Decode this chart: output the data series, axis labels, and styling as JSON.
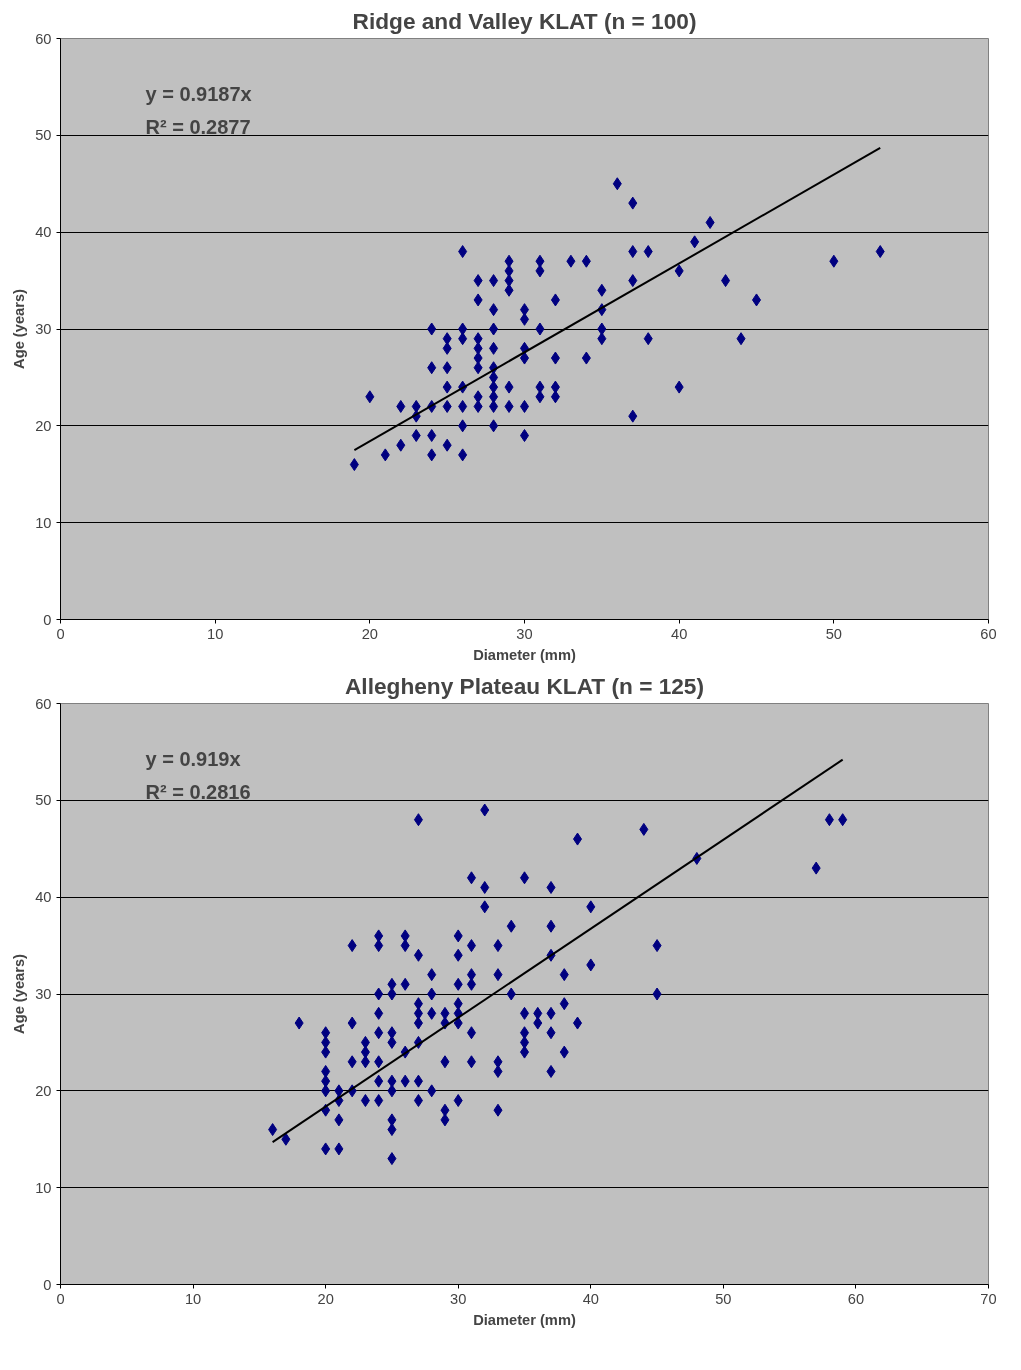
{
  "chart_data": [
    {
      "type": "scatter",
      "title": "Ridge and Valley KLAT (n = 100)",
      "xlabel": "Diameter (mm)",
      "ylabel": "Age (years)",
      "xlim": [
        0,
        60
      ],
      "ylim": [
        0,
        60
      ],
      "xticks": [
        0,
        10,
        20,
        30,
        40,
        50,
        60
      ],
      "yticks": [
        0,
        10,
        20,
        30,
        40,
        50,
        60
      ],
      "grid": "y",
      "annotations": [
        "y = 0.9187x",
        "R² = 0.2877"
      ],
      "series": [
        {
          "color": "#000080",
          "marker": "diamond",
          "x": [
            19,
            20,
            21,
            22,
            22,
            23,
            23,
            23,
            24,
            24,
            24,
            24,
            24,
            25,
            25,
            25,
            25,
            25,
            25,
            26,
            26,
            26,
            26,
            26,
            26,
            26,
            27,
            27,
            27,
            27,
            27,
            27,
            27,
            27,
            28,
            28,
            28,
            28,
            28,
            28,
            28,
            28,
            28,
            28,
            29,
            29,
            29,
            29,
            29,
            29,
            30,
            30,
            30,
            30,
            30,
            30,
            31,
            31,
            31,
            31,
            31,
            32,
            32,
            32,
            32,
            33,
            34,
            34,
            35,
            35,
            35,
            35,
            36,
            37,
            37,
            37,
            37,
            38,
            38,
            40,
            40,
            41,
            42,
            43,
            44,
            45,
            50,
            53
          ],
          "values": [
            16,
            23,
            17,
            22,
            18,
            22,
            21,
            19,
            30,
            26,
            22,
            19,
            17,
            29,
            28,
            26,
            24,
            22,
            18,
            38,
            30,
            29,
            24,
            22,
            20,
            17,
            35,
            33,
            29,
            28,
            27,
            26,
            23,
            22,
            35,
            32,
            30,
            28,
            26,
            25,
            24,
            23,
            22,
            20,
            37,
            36,
            35,
            34,
            24,
            22,
            32,
            31,
            28,
            27,
            22,
            19,
            37,
            36,
            30,
            24,
            23,
            33,
            27,
            24,
            23,
            37,
            37,
            27,
            34,
            32,
            30,
            29,
            45,
            43,
            38,
            35,
            21,
            38,
            29,
            36,
            24,
            39,
            41,
            35,
            29,
            33,
            37,
            38
          ]
        },
        {
          "type": "line",
          "color": "#000000",
          "marker": "none",
          "line_style": "solid",
          "x": [
            19,
            53
          ],
          "values": [
            17.5,
            48.7
          ]
        }
      ]
    },
    {
      "type": "scatter",
      "title": "Allegheny Plateau KLAT (n = 125)",
      "xlabel": "Diameter (mm)",
      "ylabel": "Age (years)",
      "xlim": [
        0,
        70
      ],
      "ylim": [
        0,
        60
      ],
      "xticks": [
        0,
        10,
        20,
        30,
        40,
        50,
        60,
        70
      ],
      "yticks": [
        0,
        10,
        20,
        30,
        40,
        50,
        60
      ],
      "grid": "y",
      "annotations": [
        "y = 0.919x",
        "R² = 0.2816"
      ],
      "series": [
        {
          "color": "#000080",
          "marker": "diamond",
          "x": [
            16,
            17,
            18,
            20,
            20,
            20,
            20,
            20,
            20,
            20,
            20,
            21,
            21,
            21,
            21,
            22,
            22,
            22,
            22,
            23,
            23,
            23,
            23,
            24,
            24,
            24,
            24,
            24,
            24,
            24,
            24,
            25,
            25,
            25,
            25,
            25,
            25,
            25,
            25,
            25,
            26,
            26,
            26,
            26,
            26,
            27,
            27,
            27,
            27,
            27,
            27,
            27,
            27,
            28,
            28,
            28,
            28,
            29,
            29,
            29,
            29,
            29,
            30,
            30,
            30,
            30,
            30,
            30,
            30,
            31,
            31,
            31,
            31,
            31,
            31,
            32,
            32,
            32,
            33,
            33,
            33,
            33,
            33,
            34,
            34,
            35,
            35,
            35,
            35,
            35,
            36,
            36,
            37,
            37,
            37,
            37,
            37,
            37,
            38,
            38,
            38,
            39,
            39,
            40,
            40,
            44,
            45,
            45,
            48,
            57,
            58,
            59
          ],
          "values": [
            16,
            15,
            27,
            26,
            25,
            24,
            22,
            21,
            20,
            18,
            14,
            20,
            19,
            17,
            14,
            35,
            27,
            23,
            20,
            25,
            24,
            23,
            19,
            36,
            35,
            30,
            28,
            26,
            23,
            21,
            19,
            31,
            30,
            26,
            25,
            21,
            20,
            17,
            16,
            13,
            36,
            35,
            31,
            24,
            21,
            48,
            34,
            29,
            28,
            27,
            25,
            21,
            19,
            32,
            30,
            28,
            20,
            28,
            27,
            23,
            18,
            17,
            36,
            34,
            31,
            29,
            28,
            27,
            19,
            42,
            35,
            32,
            31,
            26,
            23,
            49,
            41,
            39,
            35,
            32,
            23,
            22,
            18,
            37,
            30,
            42,
            28,
            26,
            25,
            24,
            28,
            27,
            41,
            37,
            34,
            28,
            26,
            22,
            32,
            29,
            24,
            46,
            27,
            39,
            33,
            47,
            35,
            30,
            44,
            43,
            48,
            48
          ]
        },
        {
          "type": "line",
          "color": "#000000",
          "marker": "none",
          "line_style": "solid",
          "x": [
            16,
            59
          ],
          "values": [
            14.7,
            54.2
          ]
        }
      ]
    }
  ]
}
